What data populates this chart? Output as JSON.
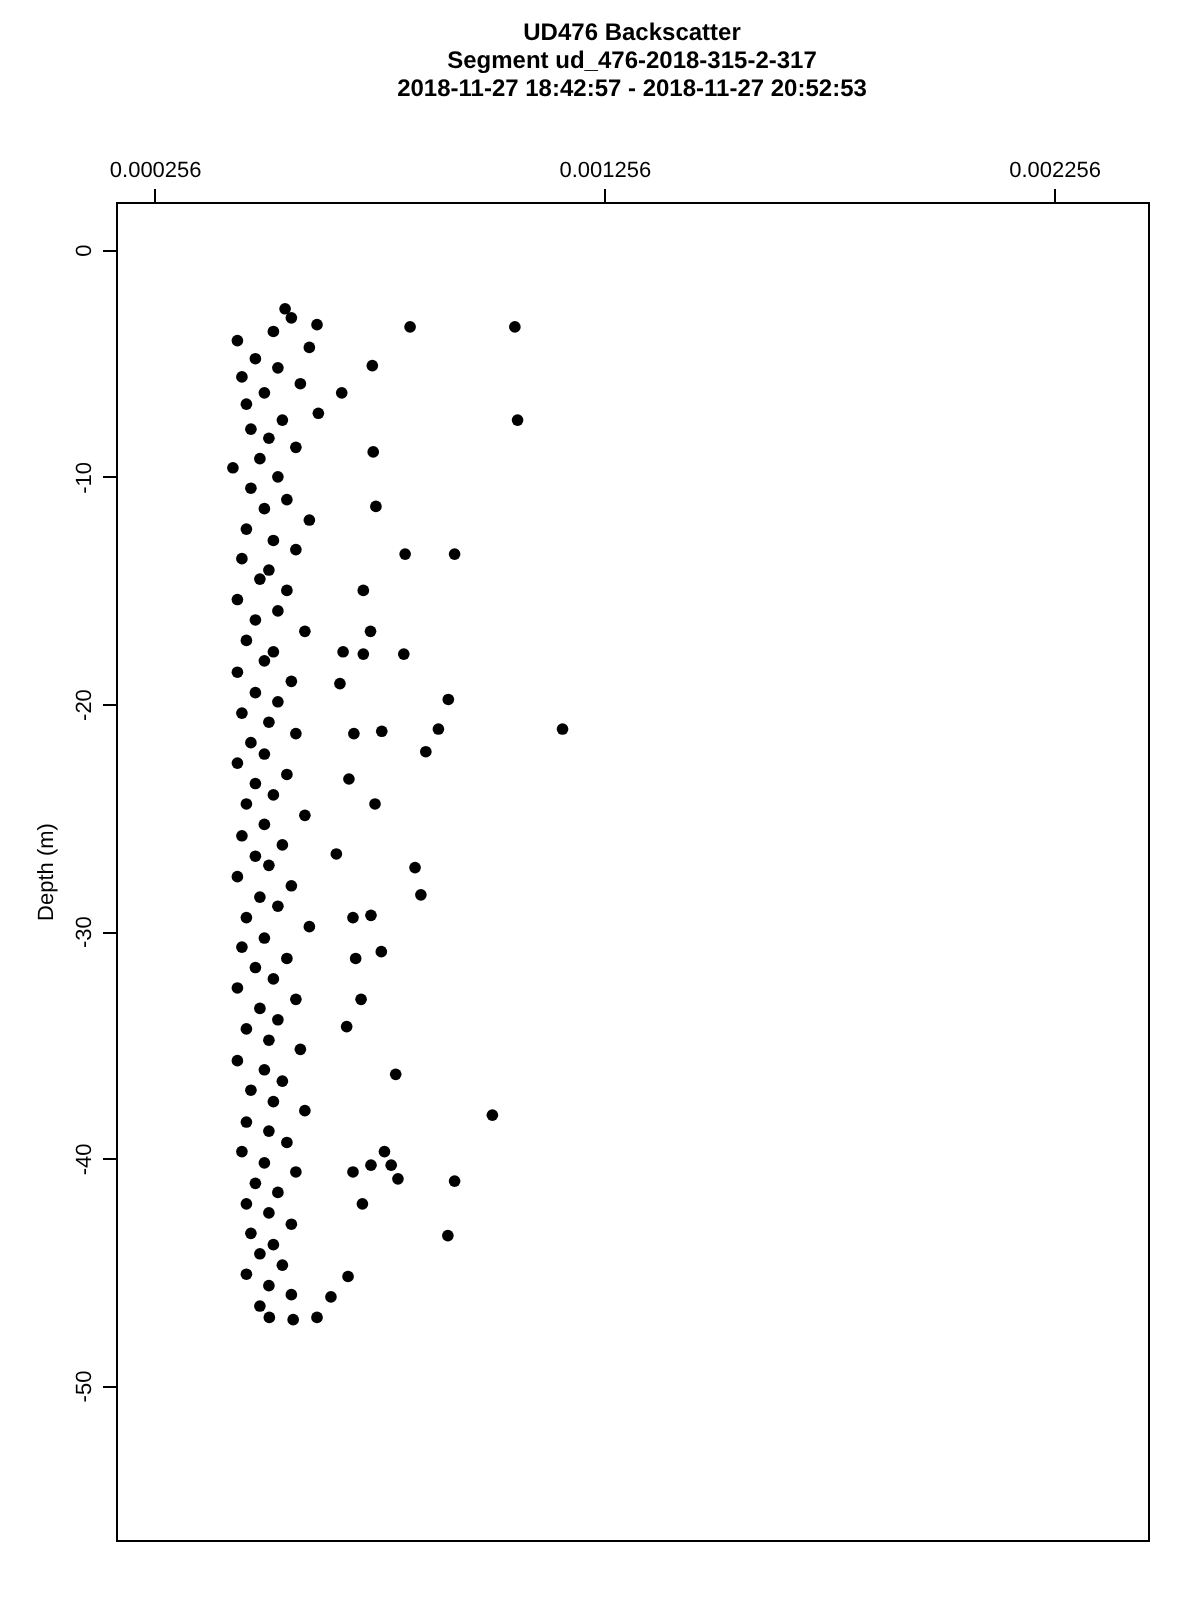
{
  "chart_data": {
    "type": "scatter",
    "title": "UD476 Backscatter",
    "subtitle": "Segment ud_476-2018-315-2-317\n2018-11-27 18:42:57 - 2018-11-27 20:52:53",
    "ylabel": "Depth (m)",
    "xlim": [
      0.00017,
      0.002465
    ],
    "xticks": [
      0.000256,
      0.001256,
      0.002256
    ],
    "ylim": [
      -56.8,
      2.1
    ],
    "yticks": [
      0,
      -10,
      -20,
      -30,
      -40,
      -50
    ],
    "grid": false,
    "marker": "circle",
    "series": [
      {
        "color": "#000000",
        "x": [
          0.000546,
          0.00056,
          0.00052,
          0.00044,
          0.0006,
          0.00048,
          0.00053,
          0.00045,
          0.00058,
          0.0005,
          0.00046,
          0.00062,
          0.00054,
          0.00047,
          0.00051,
          0.00057,
          0.00049,
          0.00043,
          0.00053,
          0.00047,
          0.00055,
          0.0005,
          0.0006,
          0.00046,
          0.00052,
          0.00057,
          0.00045,
          0.00051,
          0.00049,
          0.00055,
          0.00044,
          0.00053,
          0.00048,
          0.00059,
          0.00046,
          0.00052,
          0.0005,
          0.00044,
          0.00056,
          0.00048,
          0.00053,
          0.00045,
          0.00051,
          0.00057,
          0.00047,
          0.0005,
          0.00044,
          0.00055,
          0.00048,
          0.00052,
          0.00046,
          0.00059,
          0.0005,
          0.00045,
          0.00054,
          0.00048,
          0.00051,
          0.00044,
          0.00056,
          0.00049,
          0.00053,
          0.00046,
          0.0006,
          0.0005,
          0.00045,
          0.00055,
          0.00048,
          0.00052,
          0.00044,
          0.00057,
          0.00049,
          0.00053,
          0.00046,
          0.00051,
          0.00058,
          0.00044,
          0.0005,
          0.00054,
          0.00047,
          0.00052,
          0.00059,
          0.00046,
          0.00051,
          0.00055,
          0.00045,
          0.0005,
          0.00057,
          0.00048,
          0.00053,
          0.00046,
          0.00051,
          0.00056,
          0.00047,
          0.00052,
          0.00049,
          0.00054,
          0.00046,
          0.00051,
          0.00056,
          0.00049,
          0.000824,
          0.001057,
          0.001063,
          0.000617,
          0.00074,
          0.000742,
          0.000748,
          0.000813,
          0.000923,
          0.00072,
          0.000736,
          0.00081,
          0.000909,
          0.001163,
          0.000887,
          0.000761,
          0.000699,
          0.000859,
          0.000746,
          0.000672,
          0.000675,
          0.00072,
          0.000668,
          0.000688,
          0.000835,
          0.000848,
          0.000737,
          0.000697,
          0.00076,
          0.000703,
          0.000715,
          0.000683,
          0.000792,
          0.001007,
          0.000767,
          0.000782,
          0.000797,
          0.000923,
          0.000737,
          0.000697,
          0.000718,
          0.000908,
          0.000686,
          0.000648,
          0.000617,
          0.000564,
          0.000511,
          0.00066
        ],
        "values": [
          -2.6,
          -3.0,
          -3.6,
          -4.0,
          -4.3,
          -4.8,
          -5.2,
          -5.6,
          -5.9,
          -6.3,
          -6.8,
          -7.2,
          -7.5,
          -7.9,
          -8.3,
          -8.7,
          -9.2,
          -9.6,
          -10.0,
          -10.5,
          -11.0,
          -11.4,
          -11.9,
          -12.3,
          -12.8,
          -13.2,
          -13.6,
          -14.1,
          -14.5,
          -15.0,
          -15.4,
          -15.9,
          -16.3,
          -16.8,
          -17.2,
          -17.7,
          -18.1,
          -18.6,
          -19.0,
          -19.5,
          -19.9,
          -20.4,
          -20.8,
          -21.3,
          -21.7,
          -22.2,
          -22.6,
          -23.1,
          -23.5,
          -24.0,
          -24.4,
          -24.9,
          -25.3,
          -25.8,
          -26.2,
          -26.7,
          -27.1,
          -27.6,
          -28.0,
          -28.5,
          -28.9,
          -29.4,
          -29.8,
          -30.3,
          -30.7,
          -31.2,
          -31.6,
          -32.1,
          -32.5,
          -33.0,
          -33.4,
          -33.9,
          -34.3,
          -34.8,
          -35.2,
          -35.7,
          -36.1,
          -36.6,
          -37.0,
          -37.5,
          -37.9,
          -38.4,
          -38.8,
          -39.3,
          -39.7,
          -40.2,
          -40.6,
          -41.1,
          -41.5,
          -42.0,
          -42.4,
          -42.9,
          -43.3,
          -43.8,
          -44.2,
          -44.7,
          -45.1,
          -45.6,
          -46.0,
          -46.5,
          -3.4,
          -3.4,
          -7.5,
          -3.3,
          -5.1,
          -8.9,
          -11.3,
          -13.4,
          -13.4,
          -15.0,
          -16.8,
          -17.8,
          -19.8,
          -21.1,
          -21.1,
          -21.2,
          -21.3,
          -22.1,
          -24.4,
          -6.3,
          -17.7,
          -17.8,
          -19.1,
          -23.3,
          -27.2,
          -28.4,
          -29.3,
          -29.4,
          -30.9,
          -31.2,
          -33.0,
          -34.2,
          -36.3,
          -38.1,
          -39.7,
          -40.3,
          -40.9,
          -41.0,
          -40.3,
          -40.6,
          -42.0,
          -43.4,
          -45.2,
          -46.1,
          -47.0,
          -47.1,
          -47.0,
          -26.6
        ]
      }
    ]
  }
}
